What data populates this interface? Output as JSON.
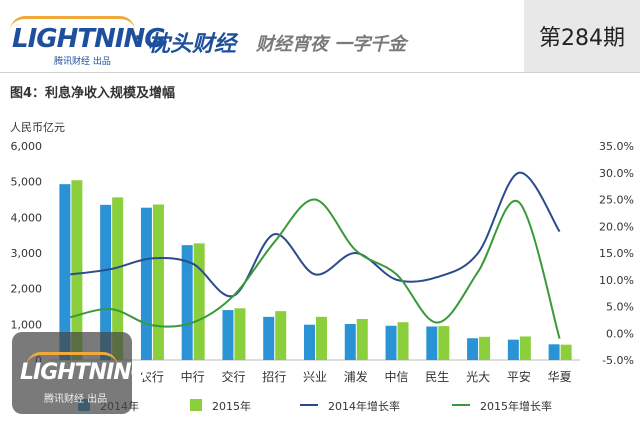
{
  "header": {
    "logo_text": "LIGHTNING",
    "logo_cn": "枕头财经",
    "logo_sub": "腾讯财经 出品",
    "slogan": "财经宵夜 一字千金",
    "issue": "第284期"
  },
  "figure_title": "图4：利息净收入规模及增幅",
  "watermark": {
    "text": "LIGHTNING",
    "sub": "腾讯财经 出品"
  },
  "colors": {
    "bar_2014": "#2a93d5",
    "bar_2015": "#8ccf3c",
    "line_2014": "#2b4b8c",
    "line_2015": "#3a9a3a",
    "grid": "#e2e2e2",
    "axis_text": "#333333"
  },
  "chart_data": {
    "type": "bar",
    "ylabel": "人民币亿元",
    "categories": [
      "",
      "",
      "农行",
      "中行",
      "交行",
      "招行",
      "兴业",
      "浦发",
      "中信",
      "民生",
      "光大",
      "平安",
      "华夏"
    ],
    "ylim": [
      0,
      6000
    ],
    "yticks": [
      "0",
      "1,000",
      "2,000",
      "3,000",
      "4,000",
      "5,000",
      "6,000"
    ],
    "y2lim": [
      -5,
      35
    ],
    "y2ticks": [
      "-5.0%",
      "0.0%",
      "5.0%",
      "10.0%",
      "15.0%",
      "20.0%",
      "25.0%",
      "30.0%",
      "35.0%"
    ],
    "series": [
      {
        "name": "2014年",
        "kind": "bar",
        "values": [
          4930,
          4350,
          4270,
          3220,
          1400,
          1210,
          990,
          1010,
          960,
          940,
          610,
          570,
          440
        ]
      },
      {
        "name": "2015年",
        "kind": "bar",
        "values": [
          5040,
          4560,
          4360,
          3270,
          1450,
          1370,
          1210,
          1150,
          1060,
          950,
          650,
          660,
          430
        ]
      },
      {
        "name": "2014年增长率",
        "kind": "line",
        "axis": "right",
        "values": [
          11,
          12,
          14,
          13,
          7,
          18.5,
          11,
          15,
          10,
          10.5,
          15,
          30,
          19
        ]
      },
      {
        "name": "2015年增长率",
        "kind": "line",
        "axis": "right",
        "values": [
          3,
          4.5,
          1.5,
          2,
          7,
          17,
          25,
          15.5,
          11,
          2,
          11.5,
          24.5,
          -1
        ]
      }
    ],
    "legend": "bottom",
    "grid": false
  }
}
